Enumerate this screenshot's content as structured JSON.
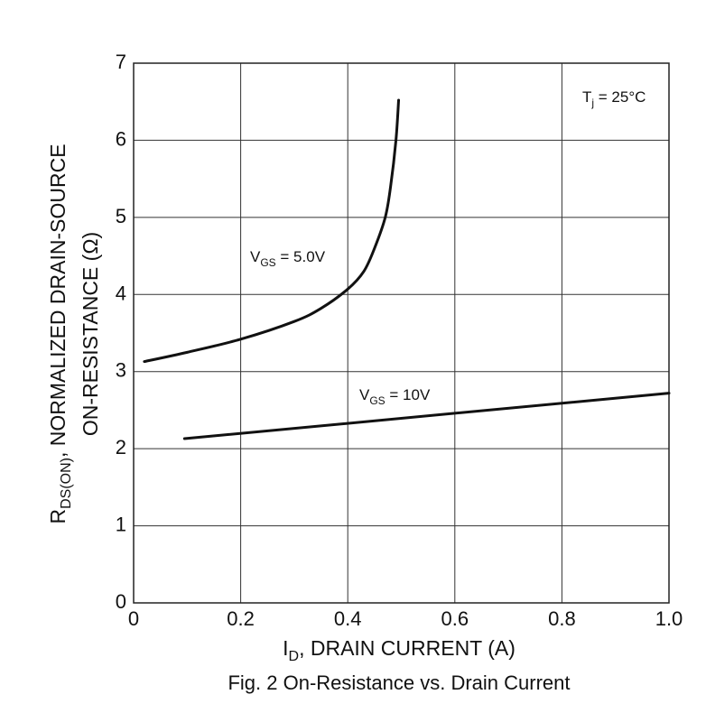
{
  "chart_data": {
    "type": "line",
    "title": "On-Resistance vs. Drain Current",
    "figure_label": "Fig. 2",
    "xlabel": {
      "symbol": "I",
      "subscript": "D",
      "text": ", DRAIN CURRENT (A)"
    },
    "ylabel": {
      "line1_symbol": "R",
      "line1_subscript": "DS(ON)",
      "line1_text": ", NORMALIZED DRAIN-SOURCE",
      "line2": "ON-RESISTANCE (Ω)"
    },
    "xlim": [
      0,
      1.0
    ],
    "ylim": [
      0,
      7
    ],
    "xticks": [
      "0",
      "0.2",
      "0.4",
      "0.6",
      "0.8",
      "1.0"
    ],
    "yticks": [
      "0",
      "1",
      "2",
      "3",
      "4",
      "5",
      "6",
      "7"
    ],
    "grid": true,
    "annotation": {
      "symbol": "T",
      "subscript": "j",
      "text": " = 25°C"
    },
    "series": [
      {
        "name": "VGS = 5.0V",
        "label": {
          "symbol": "V",
          "subscript": "GS",
          "text": " = 5.0V"
        },
        "x": [
          0.02,
          0.1,
          0.2,
          0.3,
          0.35,
          0.4,
          0.43,
          0.45,
          0.47,
          0.48,
          0.49,
          0.495
        ],
        "y": [
          3.13,
          3.25,
          3.42,
          3.65,
          3.82,
          4.07,
          4.3,
          4.6,
          5.0,
          5.4,
          6.0,
          6.52
        ]
      },
      {
        "name": "VGS = 10V",
        "label": {
          "symbol": "V",
          "subscript": "GS",
          "text": " = 10V"
        },
        "x": [
          0.095,
          1.0
        ],
        "y": [
          2.13,
          2.72
        ]
      }
    ]
  }
}
